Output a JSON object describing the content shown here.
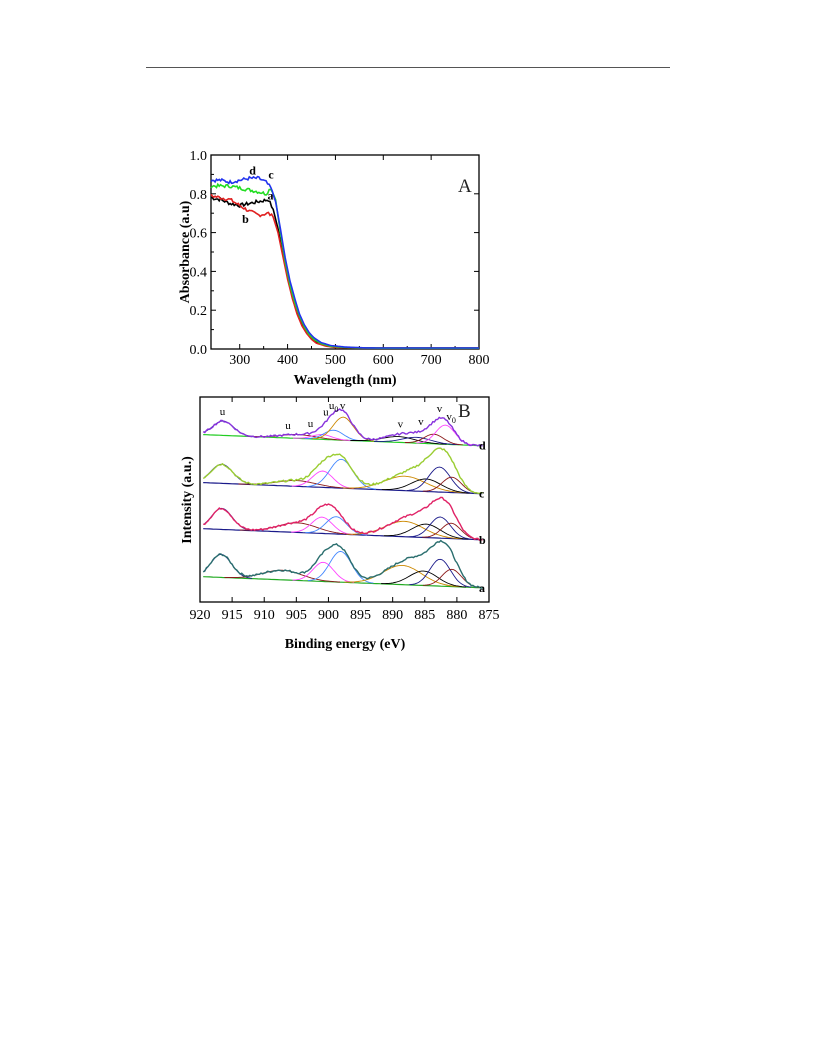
{
  "chart_data": [
    {
      "panel": "A",
      "type": "line",
      "xlabel": "Wavelength (nm)",
      "ylabel": "Absorbance (a.u)",
      "xlim": [
        240,
        800
      ],
      "ylim": [
        0.0,
        1.0
      ],
      "xticks": [
        300,
        400,
        500,
        600,
        700,
        800
      ],
      "yticks": [
        0.0,
        0.2,
        0.4,
        0.6,
        0.8,
        1.0
      ],
      "ytick_labels": [
        "0.0",
        "0.2",
        "0.4",
        "0.6",
        "0.8",
        "1.0"
      ],
      "series": [
        {
          "name": "a",
          "color": "#000000",
          "x": [
            240,
            260,
            280,
            300,
            320,
            340,
            360,
            370,
            380,
            390,
            400,
            410,
            420,
            430,
            440,
            450,
            460,
            480,
            500,
            550,
            600,
            700,
            800
          ],
          "y": [
            0.78,
            0.77,
            0.75,
            0.74,
            0.75,
            0.76,
            0.77,
            0.72,
            0.62,
            0.49,
            0.37,
            0.27,
            0.19,
            0.13,
            0.085,
            0.055,
            0.035,
            0.018,
            0.01,
            0.006,
            0.005,
            0.005,
            0.005
          ]
        },
        {
          "name": "b",
          "color": "#e02020",
          "x": [
            240,
            260,
            280,
            300,
            320,
            340,
            360,
            370,
            380,
            390,
            400,
            410,
            420,
            430,
            440,
            450,
            460,
            480,
            500,
            550,
            600,
            700,
            800
          ],
          "y": [
            0.79,
            0.78,
            0.77,
            0.74,
            0.71,
            0.69,
            0.7,
            0.68,
            0.6,
            0.48,
            0.36,
            0.26,
            0.18,
            0.12,
            0.08,
            0.05,
            0.03,
            0.015,
            0.008,
            0.005,
            0.004,
            0.004,
            0.004
          ]
        },
        {
          "name": "c",
          "color": "#22dd22",
          "x": [
            240,
            260,
            280,
            300,
            320,
            340,
            355,
            365,
            375,
            385,
            395,
            405,
            415,
            425,
            435,
            445,
            455,
            470,
            490,
            520,
            560,
            600,
            700,
            800
          ],
          "y": [
            0.84,
            0.84,
            0.84,
            0.83,
            0.82,
            0.81,
            0.8,
            0.83,
            0.77,
            0.6,
            0.45,
            0.33,
            0.24,
            0.17,
            0.115,
            0.075,
            0.05,
            0.028,
            0.014,
            0.008,
            0.005,
            0.004,
            0.004,
            0.004
          ]
        },
        {
          "name": "d",
          "color": "#2233ee",
          "x": [
            240,
            260,
            280,
            300,
            320,
            340,
            355,
            365,
            375,
            385,
            395,
            405,
            415,
            425,
            435,
            445,
            455,
            470,
            490,
            520,
            560,
            600,
            700,
            800
          ],
          "y": [
            0.87,
            0.87,
            0.86,
            0.87,
            0.88,
            0.88,
            0.86,
            0.83,
            0.76,
            0.62,
            0.47,
            0.35,
            0.26,
            0.18,
            0.125,
            0.085,
            0.058,
            0.033,
            0.018,
            0.01,
            0.006,
            0.005,
            0.005,
            0.005
          ]
        }
      ],
      "curve_labels": [
        {
          "text": "d",
          "x": 320,
          "y": 0.9
        },
        {
          "text": "c",
          "x": 360,
          "y": 0.88
        },
        {
          "text": "a",
          "x": 358,
          "y": 0.77
        },
        {
          "text": "b",
          "x": 305,
          "y": 0.65
        }
      ],
      "panel_label": "A"
    },
    {
      "panel": "B",
      "type": "line",
      "xlabel": "Binding energy (eV)",
      "ylabel": "Intensity (a.u.)",
      "xlim": [
        920,
        875
      ],
      "xticks": [
        920,
        915,
        910,
        905,
        900,
        895,
        890,
        885,
        880,
        875
      ],
      "panel_label": "B",
      "series": [
        {
          "name": "a",
          "color": "#2a6e6e",
          "offset": 0.0,
          "peaks": [
            [
              916.7,
              0.24,
              1.6
            ],
            [
              907.2,
              0.1,
              3.0
            ],
            [
              900.8,
              0.2,
              1.6
            ],
            [
              898.1,
              0.32,
              1.7
            ],
            [
              888.5,
              0.2,
              3.0
            ],
            [
              885.2,
              0.15,
              2.2
            ],
            [
              882.6,
              0.28,
              1.6
            ],
            [
              880.8,
              0.18,
              1.5
            ]
          ]
        },
        {
          "name": "b",
          "color": "#e02266",
          "offset": 0.5,
          "peaks": [
            [
              916.6,
              0.22,
              1.6
            ],
            [
              904.8,
              0.1,
              3.0
            ],
            [
              901.0,
              0.17,
              1.6
            ],
            [
              898.8,
              0.18,
              1.6
            ],
            [
              888.2,
              0.16,
              3.0
            ],
            [
              884.8,
              0.14,
              2.2
            ],
            [
              882.6,
              0.22,
              1.6
            ],
            [
              880.9,
              0.16,
              1.5
            ]
          ]
        },
        {
          "name": "c",
          "color": "#9acd32",
          "offset": 0.98,
          "peaks": [
            [
              916.6,
              0.2,
              1.7
            ],
            [
              905.0,
              0.06,
              3.0
            ],
            [
              900.9,
              0.17,
              1.6
            ],
            [
              898.0,
              0.3,
              1.8
            ],
            [
              888.1,
              0.15,
              3.2
            ],
            [
              884.8,
              0.13,
              2.3
            ],
            [
              882.7,
              0.26,
              1.7
            ],
            [
              880.8,
              0.16,
              1.5
            ]
          ]
        },
        {
          "name": "d",
          "color": "#8833dd",
          "offset": 1.48,
          "peaks": [
            [
              916.4,
              0.15,
              1.6
            ],
            [
              904.7,
              0.04,
              2.6
            ],
            [
              901.0,
              0.05,
              1.5
            ],
            [
              899.2,
              0.1,
              1.5
            ],
            [
              897.7,
              0.24,
              1.6
            ],
            [
              889.1,
              0.06,
              2.5
            ],
            [
              886.3,
              0.06,
              2.2
            ],
            [
              883.6,
              0.1,
              1.5
            ],
            [
              881.8,
              0.2,
              1.5
            ]
          ]
        }
      ],
      "curve_labels": [
        {
          "text": "a",
          "series": "a"
        },
        {
          "text": "b",
          "series": "b"
        },
        {
          "text": "c",
          "series": "c"
        },
        {
          "text": "d",
          "series": "d"
        }
      ],
      "peak_labels": [
        {
          "text": "u",
          "sub": "",
          "x": 916.5
        },
        {
          "text": "u",
          "sub": "",
          "x": 906.3
        },
        {
          "text": "u",
          "sub": "",
          "x": 902.8
        },
        {
          "text": "u",
          "sub": "",
          "x": 900.4
        },
        {
          "text": "u",
          "sub": "0",
          "x": 899.2
        },
        {
          "text": "v",
          "sub": "",
          "x": 897.8
        },
        {
          "text": "v",
          "sub": "",
          "x": 888.8
        },
        {
          "text": "v",
          "sub": "",
          "x": 885.6
        },
        {
          "text": "v",
          "sub": "",
          "x": 882.7
        },
        {
          "text": "v",
          "sub": "0",
          "x": 880.9
        }
      ]
    }
  ],
  "colors": {
    "fit_components": [
      "#1a1a8a",
      "#8b1a1a",
      "#ff44ff",
      "#4488ff",
      "#cc8800",
      "#000000"
    ],
    "background_line": "#1a1a8a",
    "top_background": "#22cc22"
  }
}
